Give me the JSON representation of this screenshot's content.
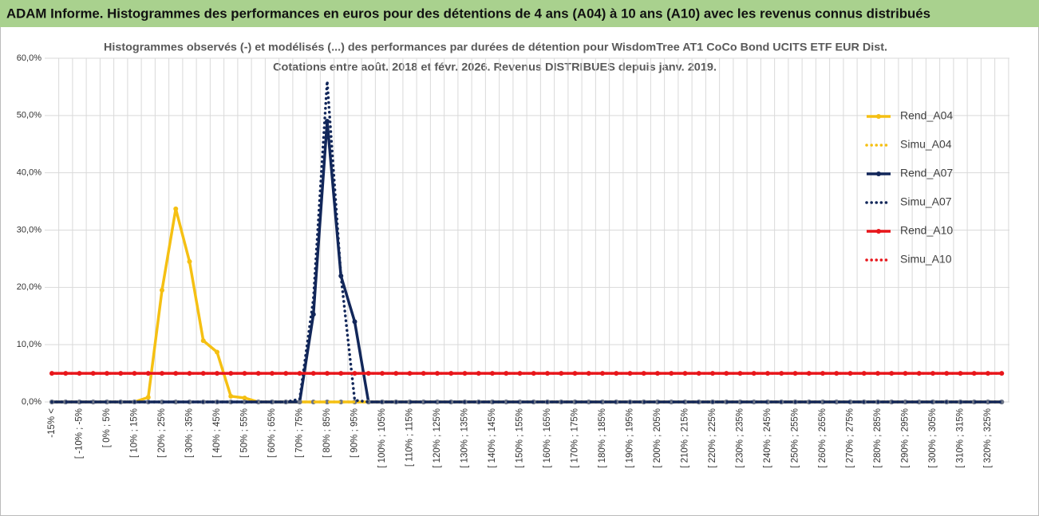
{
  "page_title": "ADAM Informe. Histogrammes des performances en euros pour des détentions de 4 ans (A04) à 10 ans (A10) avec les revenus connus distribués",
  "chart_data": {
    "type": "line",
    "title": "Histogrammes observés (-) et modélisés (...) des performances par durées de détention pour WisdomTree AT1 CoCo Bond UCITS ETF EUR Dist.",
    "subtitle": "Cotations entre août. 2018 et févr. 2026. Revenus DISTRIBUES depuis janv. 2019.",
    "categories": [
      "-15% <",
      null,
      "[ -10% ; -5%",
      null,
      "[ 0% ; 5%",
      null,
      "[ 10% ; 15%",
      null,
      "[ 20% ; 25%",
      null,
      "[ 30% ; 35%",
      null,
      "[ 40% ; 45%",
      null,
      "[ 50% ; 55%",
      null,
      "[ 60% ; 65%",
      null,
      "[ 70% ; 75%",
      null,
      "[ 80% ; 85%",
      null,
      "[ 90% ; 95%",
      null,
      "[ 100% ; 105%",
      null,
      "[ 110% ; 115%",
      null,
      "[ 120% ; 125%",
      null,
      "[ 130% ; 135%",
      null,
      "[ 140% ; 145%",
      null,
      "[ 150% ; 155%",
      null,
      "[ 160% ; 165%",
      null,
      "[ 170% ; 175%",
      null,
      "[ 180% ; 185%",
      null,
      "[ 190% ; 195%",
      null,
      "[ 200% ; 205%",
      null,
      "[ 210% ; 215%",
      null,
      "[ 220% ; 225%",
      null,
      "[ 230% ; 235%",
      null,
      "[ 240% ; 245%",
      null,
      "[ 250% ; 255%",
      null,
      "[ 260% ; 265%",
      null,
      "[ 270% ; 275%",
      null,
      "[ 280% ; 285%",
      null,
      "[ 290% ; 295%",
      null,
      "[ 300% ; 305%",
      null,
      "[ 310% ; 315%",
      null,
      "[ 320% ; 325%",
      null
    ],
    "series": [
      {
        "name": "Rend_A04",
        "color": "#f5c013",
        "line_style": "solid",
        "markers": true,
        "values": [
          0,
          0,
          0,
          0,
          0,
          0,
          0,
          0.8,
          19.5,
          33.7,
          24.5,
          10.7,
          8.7,
          1,
          0.7,
          0,
          0,
          0,
          0,
          0,
          0,
          0,
          0,
          0,
          0,
          0,
          0,
          0,
          0,
          0,
          0,
          0,
          0,
          0,
          0,
          0,
          0,
          0,
          0,
          0,
          0,
          0,
          0,
          0,
          0,
          0,
          0,
          0,
          0,
          0,
          0,
          0,
          0,
          0,
          0,
          0,
          0,
          0,
          0,
          0,
          0,
          0,
          0,
          0,
          0,
          0,
          0,
          0,
          0,
          0
        ]
      },
      {
        "name": "Simu_A04",
        "color": "#f5c013",
        "line_style": "dotted",
        "markers": false,
        "values": [
          0,
          0,
          0,
          0,
          0,
          0,
          0,
          0,
          0,
          0,
          0,
          0,
          0,
          0,
          0,
          0,
          0,
          0,
          0,
          0,
          0,
          0,
          0,
          0,
          0,
          0,
          0,
          0,
          0,
          0,
          0,
          0,
          0,
          0,
          0,
          0,
          0,
          0,
          0,
          0,
          0,
          0,
          0,
          0,
          0,
          0,
          0,
          0,
          0,
          0,
          0,
          0,
          0,
          0,
          0,
          0,
          0,
          0,
          0,
          0,
          0,
          0,
          0,
          0,
          0,
          0,
          0,
          0,
          0,
          0
        ]
      },
      {
        "name": "Rend_A07",
        "color": "#12275a",
        "line_style": "solid",
        "markers": true,
        "values": [
          0,
          0,
          0,
          0,
          0,
          0,
          0,
          0,
          0,
          0,
          0,
          0,
          0,
          0,
          0,
          0,
          0,
          0,
          0,
          15.3,
          49,
          22,
          14,
          0,
          0,
          0,
          0,
          0,
          0,
          0,
          0,
          0,
          0,
          0,
          0,
          0,
          0,
          0,
          0,
          0,
          0,
          0,
          0,
          0,
          0,
          0,
          0,
          0,
          0,
          0,
          0,
          0,
          0,
          0,
          0,
          0,
          0,
          0,
          0,
          0,
          0,
          0,
          0,
          0,
          0,
          0,
          0,
          0,
          0,
          0
        ]
      },
      {
        "name": "Simu_A07",
        "color": "#12275a",
        "line_style": "dotted",
        "markers": false,
        "values": [
          0,
          0,
          0,
          0,
          0,
          0,
          0,
          0,
          0,
          0,
          0,
          0,
          0,
          0,
          0,
          0,
          0,
          0,
          0.5,
          18,
          56,
          22,
          0.3,
          0,
          0,
          0,
          0,
          0,
          0,
          0,
          0,
          0,
          0,
          0,
          0,
          0,
          0,
          0,
          0,
          0,
          0,
          0,
          0,
          0,
          0,
          0,
          0,
          0,
          0,
          0,
          0,
          0,
          0,
          0,
          0,
          0,
          0,
          0,
          0,
          0,
          0,
          0,
          0,
          0,
          0,
          0,
          0,
          0,
          0,
          0
        ]
      },
      {
        "name": "Rend_A10",
        "color": "#e8161b",
        "line_style": "solid",
        "markers": true,
        "values": [
          5,
          5,
          5,
          5,
          5,
          5,
          5,
          5,
          5,
          5,
          5,
          5,
          5,
          5,
          5,
          5,
          5,
          5,
          5,
          5,
          5,
          5,
          5,
          5,
          5,
          5,
          5,
          5,
          5,
          5,
          5,
          5,
          5,
          5,
          5,
          5,
          5,
          5,
          5,
          5,
          5,
          5,
          5,
          5,
          5,
          5,
          5,
          5,
          5,
          5,
          5,
          5,
          5,
          5,
          5,
          5,
          5,
          5,
          5,
          5,
          5,
          5,
          5,
          5,
          5,
          5,
          5,
          5,
          5,
          5
        ]
      },
      {
        "name": "Simu_A10",
        "color": "#e8161b",
        "line_style": "dotted",
        "markers": false,
        "values": [
          5,
          5,
          5,
          5,
          5,
          5,
          5,
          5,
          5,
          5,
          5,
          5,
          5,
          5,
          5,
          5,
          5,
          5,
          5,
          5,
          5,
          5,
          5,
          5,
          5,
          5,
          5,
          5,
          5,
          5,
          5,
          5,
          5,
          5,
          5,
          5,
          5,
          5,
          5,
          5,
          5,
          5,
          5,
          5,
          5,
          5,
          5,
          5,
          5,
          5,
          5,
          5,
          5,
          5,
          5,
          5,
          5,
          5,
          5,
          5,
          5,
          5,
          5,
          5,
          5,
          5,
          5,
          5,
          5,
          5
        ]
      }
    ],
    "ylim": [
      0,
      60
    ],
    "yticks": [
      {
        "value": 0,
        "label": "0,0%"
      },
      {
        "value": 10,
        "label": "10,0%"
      },
      {
        "value": 20,
        "label": "20,0%"
      },
      {
        "value": 30,
        "label": "30,0%"
      },
      {
        "value": 40,
        "label": "40,0%"
      },
      {
        "value": 50,
        "label": "50,0%"
      },
      {
        "value": 60,
        "label": "60,0%"
      }
    ],
    "grid": true,
    "legend": "right"
  }
}
